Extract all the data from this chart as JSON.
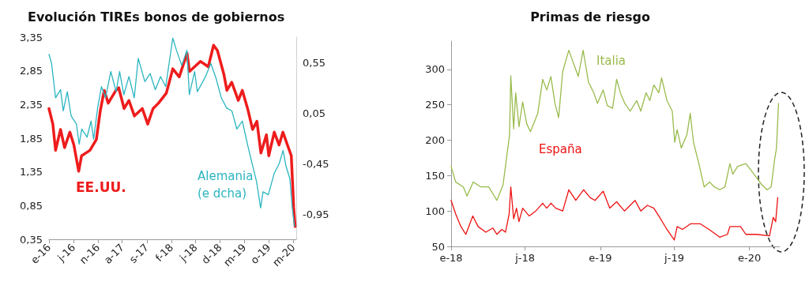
{
  "chart_data": [
    {
      "type": "line",
      "title": "Evolución TIREs bonos de gobiernos",
      "xlim": [
        "2016-01-01",
        "2020-03-20"
      ],
      "xticks": [
        {
          "value": "2016-01-01",
          "label": "e-16"
        },
        {
          "value": "2016-06-01",
          "label": "j-16"
        },
        {
          "value": "2016-11-01",
          "label": "n-16"
        },
        {
          "value": "2017-04-01",
          "label": "a-17"
        },
        {
          "value": "2017-09-01",
          "label": "s-17"
        },
        {
          "value": "2018-02-01",
          "label": "f-18"
        },
        {
          "value": "2018-07-01",
          "label": "j-18"
        },
        {
          "value": "2018-12-01",
          "label": "d-18"
        },
        {
          "value": "2019-05-01",
          "label": "m-19"
        },
        {
          "value": "2019-10-01",
          "label": "o-19"
        },
        {
          "value": "2020-03-01",
          "label": "m-20"
        }
      ],
      "ylim": [
        0.35,
        3.35
      ],
      "yticks": [
        {
          "value": 0.35,
          "label": "0,35"
        },
        {
          "value": 0.85,
          "label": "0,85"
        },
        {
          "value": 1.35,
          "label": "1,35"
        },
        {
          "value": 1.85,
          "label": "1,85"
        },
        {
          "value": 2.35,
          "label": "2,35"
        },
        {
          "value": 2.85,
          "label": "2,85"
        },
        {
          "value": 3.35,
          "label": "3,35"
        }
      ],
      "y2lim": [
        -1.2,
        0.8
      ],
      "y2ticks": [
        {
          "value": -0.95,
          "label": "-0,95"
        },
        {
          "value": -0.45,
          "label": "-0,45"
        },
        {
          "value": 0.05,
          "label": "0,05"
        },
        {
          "value": 0.55,
          "label": "0,55"
        }
      ],
      "series": [
        {
          "name": "EE.UU.",
          "color": "#ee1c1c",
          "x": [
            "2016-01-01",
            "2016-01-25",
            "2016-02-11",
            "2016-03-13",
            "2016-04-07",
            "2016-05-10",
            "2016-06-04",
            "2016-07-04",
            "2016-07-22",
            "2016-09-12",
            "2016-10-22",
            "2016-11-15",
            "2016-12-10",
            "2017-01-04",
            "2017-02-21",
            "2017-03-10",
            "2017-04-13",
            "2017-05-13",
            "2017-06-16",
            "2017-08-04",
            "2017-09-07",
            "2017-10-10",
            "2017-11-13",
            "2018-01-01",
            "2018-02-10",
            "2018-03-22",
            "2018-05-10",
            "2018-05-25",
            "2018-08-01",
            "2018-09-19",
            "2018-10-22",
            "2018-11-15",
            "2018-12-25",
            "2019-01-13",
            "2019-02-12",
            "2019-03-25",
            "2019-04-19",
            "2019-05-22",
            "2019-06-22",
            "2019-07-19",
            "2019-08-13",
            "2019-09-16",
            "2019-10-01",
            "2019-11-04",
            "2019-12-04",
            "2019-12-28",
            "2020-01-25",
            "2020-02-18",
            "2020-03-04",
            "2020-03-13"
          ],
          "values": [
            2.29,
            2.06,
            1.67,
            1.98,
            1.71,
            1.94,
            1.75,
            1.36,
            1.59,
            1.67,
            1.83,
            2.25,
            2.56,
            2.37,
            2.56,
            2.6,
            2.29,
            2.41,
            2.18,
            2.29,
            2.06,
            2.29,
            2.37,
            2.52,
            2.88,
            2.76,
            3.11,
            2.84,
            2.99,
            2.91,
            3.23,
            3.15,
            2.8,
            2.56,
            2.68,
            2.41,
            2.56,
            2.29,
            1.98,
            2.1,
            1.63,
            1.9,
            1.59,
            1.94,
            1.75,
            1.94,
            1.75,
            1.59,
            0.82,
            0.54
          ]
        },
        {
          "name": "Alemania\n(e dcha)",
          "color": "#2bb5c0",
          "axis": "y2",
          "x": [
            "2016-01-01",
            "2016-01-17",
            "2016-02-11",
            "2016-03-13",
            "2016-03-30",
            "2016-04-24",
            "2016-05-18",
            "2016-06-20",
            "2016-07-07",
            "2016-07-23",
            "2016-08-25",
            "2016-09-19",
            "2016-10-05",
            "2016-10-30",
            "2016-11-23",
            "2016-12-18",
            "2017-01-20",
            "2017-02-22",
            "2017-03-16",
            "2017-04-11",
            "2017-05-13",
            "2017-06-15",
            "2017-07-10",
            "2017-08-20",
            "2017-09-22",
            "2017-10-24",
            "2017-11-26",
            "2017-12-28",
            "2018-02-10",
            "2018-03-05",
            "2018-04-07",
            "2018-05-09",
            "2018-05-24",
            "2018-06-26",
            "2018-07-13",
            "2018-09-02",
            "2018-10-05",
            "2018-11-07",
            "2018-12-09",
            "2019-01-11",
            "2019-02-13",
            "2019-03-16",
            "2019-04-19",
            "2019-05-21",
            "2019-06-22",
            "2019-07-17",
            "2019-08-11",
            "2019-08-26",
            "2019-09-28",
            "2019-11-03",
            "2019-12-05",
            "2019-12-29",
            "2020-01-15",
            "2020-02-09",
            "2020-02-24",
            "2020-03-09"
          ],
          "values": [
            0.63,
            0.54,
            0.2,
            0.28,
            0.07,
            0.26,
            0.02,
            -0.06,
            -0.26,
            -0.11,
            -0.19,
            -0.03,
            -0.21,
            0.1,
            0.31,
            0.2,
            0.46,
            0.26,
            0.46,
            0.23,
            0.41,
            0.2,
            0.59,
            0.36,
            0.44,
            0.28,
            0.41,
            0.31,
            0.79,
            0.67,
            0.52,
            0.67,
            0.23,
            0.46,
            0.26,
            0.41,
            0.54,
            0.39,
            0.2,
            0.1,
            0.07,
            -0.11,
            -0.03,
            -0.26,
            -0.47,
            -0.63,
            -0.89,
            -0.73,
            -0.76,
            -0.55,
            -0.45,
            -0.32,
            -0.47,
            -0.6,
            -0.89,
            -1.07
          ]
        }
      ]
    },
    {
      "type": "line",
      "title": "Primas de riesgo",
      "xlim": [
        "2018-01-01",
        "2020-03-15"
      ],
      "xticks": [
        {
          "value": "2018-01-01",
          "label": "e-18"
        },
        {
          "value": "2018-07-01",
          "label": "j-18"
        },
        {
          "value": "2019-01-01",
          "label": "e-19"
        },
        {
          "value": "2019-07-01",
          "label": "j-19"
        },
        {
          "value": "2020-01-01",
          "label": "e-20"
        }
      ],
      "ylim": [
        50,
        340
      ],
      "yticks": [
        50,
        100,
        150,
        200,
        250,
        300
      ],
      "series": [
        {
          "name": "Italia",
          "color": "#99bb4c",
          "x": [
            "2018-01-01",
            "2018-01-12",
            "2018-01-31",
            "2018-02-09",
            "2018-02-24",
            "2018-03-15",
            "2018-04-03",
            "2018-04-23",
            "2018-05-08",
            "2018-05-14",
            "2018-05-24",
            "2018-05-27",
            "2018-06-03",
            "2018-06-08",
            "2018-06-16",
            "2018-06-25",
            "2018-07-05",
            "2018-07-14",
            "2018-08-01",
            "2018-08-13",
            "2018-08-23",
            "2018-09-02",
            "2018-09-12",
            "2018-09-21",
            "2018-10-01",
            "2018-10-16",
            "2018-11-08",
            "2018-11-20",
            "2018-12-03",
            "2018-12-16",
            "2018-12-25",
            "2019-01-08",
            "2019-01-18",
            "2019-01-31",
            "2019-02-10",
            "2019-02-19",
            "2019-03-02",
            "2019-03-15",
            "2019-03-31",
            "2019-04-10",
            "2019-04-23",
            "2019-05-02",
            "2019-05-12",
            "2019-05-24",
            "2019-05-31",
            "2019-06-13",
            "2019-06-26",
            "2019-07-02",
            "2019-07-08",
            "2019-07-18",
            "2019-08-01",
            "2019-08-09",
            "2019-08-17",
            "2019-08-30",
            "2019-09-12",
            "2019-09-25",
            "2019-10-07",
            "2019-10-20",
            "2019-11-02",
            "2019-11-14",
            "2019-11-21",
            "2019-12-03",
            "2019-12-23",
            "2020-01-12",
            "2020-01-31",
            "2020-02-13",
            "2020-02-23",
            "2020-03-02",
            "2020-03-07",
            "2020-03-12"
          ],
          "values": [
            163,
            141,
            134,
            121,
            141,
            134,
            134,
            115,
            137,
            163,
            208,
            291,
            216,
            267,
            219,
            254,
            223,
            212,
            238,
            286,
            271,
            290,
            252,
            232,
            297,
            327,
            290,
            327,
            282,
            267,
            252,
            271,
            249,
            245,
            286,
            267,
            252,
            241,
            256,
            241,
            267,
            256,
            278,
            267,
            288,
            256,
            241,
            197,
            215,
            189,
            208,
            238,
            197,
            167,
            134,
            141,
            134,
            130,
            134,
            167,
            152,
            163,
            167,
            152,
            137,
            130,
            134,
            171,
            189,
            252
          ]
        },
        {
          "name": "España",
          "color": "#ee1111",
          "x": [
            "2018-01-01",
            "2018-01-12",
            "2018-01-25",
            "2018-02-06",
            "2018-02-23",
            "2018-03-08",
            "2018-03-27",
            "2018-04-13",
            "2018-04-23",
            "2018-05-05",
            "2018-05-14",
            "2018-05-23",
            "2018-05-27",
            "2018-06-03",
            "2018-06-10",
            "2018-06-16",
            "2018-06-25",
            "2018-07-11",
            "2018-07-27",
            "2018-08-13",
            "2018-08-23",
            "2018-09-02",
            "2018-09-14",
            "2018-10-01",
            "2018-10-16",
            "2018-11-02",
            "2018-11-21",
            "2018-12-07",
            "2018-12-19",
            "2019-01-08",
            "2019-01-24",
            "2019-02-10",
            "2019-03-01",
            "2019-03-15",
            "2019-03-27",
            "2019-04-10",
            "2019-04-26",
            "2019-05-12",
            "2019-05-24",
            "2019-06-13",
            "2019-07-01",
            "2019-07-08",
            "2019-07-21",
            "2019-08-10",
            "2019-09-02",
            "2019-09-24",
            "2019-10-20",
            "2019-11-08",
            "2019-11-14",
            "2019-12-10",
            "2019-12-23",
            "2020-01-18",
            "2020-02-19",
            "2020-02-28",
            "2020-03-05",
            "2020-03-10"
          ],
          "values": [
            115,
            96,
            78,
            67,
            93,
            78,
            70,
            76,
            67,
            74,
            70,
            96,
            134,
            89,
            104,
            85,
            104,
            93,
            100,
            111,
            104,
            111,
            104,
            100,
            130,
            115,
            130,
            119,
            115,
            128,
            104,
            113,
            100,
            108,
            115,
            100,
            108,
            104,
            93,
            74,
            59,
            78,
            74,
            82,
            82,
            74,
            63,
            67,
            78,
            78,
            67,
            67,
            65,
            91,
            85,
            119
          ]
        }
      ]
    }
  ]
}
